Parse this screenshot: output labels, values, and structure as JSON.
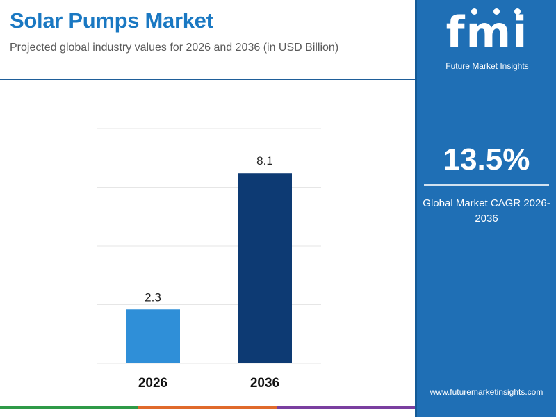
{
  "header": {
    "title": "Solar Pumps Market",
    "subtitle": "Projected global industry values for 2026 and 2036 (in USD Billion)"
  },
  "sidebar": {
    "logo_text": "fmi",
    "logo_subtext": "Future Market Insights",
    "cagr_value": "13.5%",
    "cagr_label": "Global Market CAGR 2026- 2036",
    "website": "www.futuremarketinsights.com"
  },
  "colors": {
    "accent": "#1a78c2",
    "panel": "#1f6fb5",
    "bar_2026": "#2f8fd8",
    "bar_2036": "#0d3a73",
    "strip": [
      "#2e9a47",
      "#e06a2b",
      "#7a3fa0"
    ]
  },
  "chart_data": {
    "type": "bar",
    "categories": [
      "2026",
      "2036"
    ],
    "values": [
      2.3,
      8.1
    ],
    "data_labels": [
      "2.3",
      "8.1"
    ],
    "bar_colors": [
      "#2f8fd8",
      "#0d3a73"
    ],
    "ylim": [
      0,
      10
    ],
    "grid": true,
    "axes_visible": false
  }
}
